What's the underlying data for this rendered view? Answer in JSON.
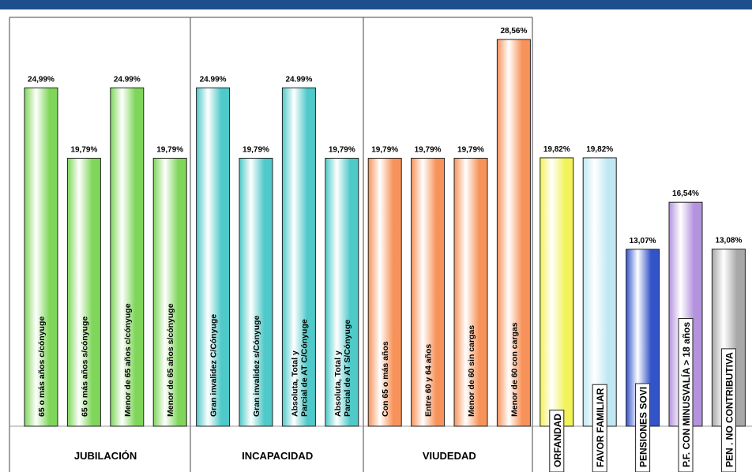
{
  "chart_data": {
    "type": "bar",
    "categories": [
      [
        "65 o más años c/cónyuge"
      ],
      [
        "65 o más años s/cónyuge"
      ],
      [
        "Menor de 65 años c/cónyuge"
      ],
      [
        "Menor de 65 años s/cónyuge"
      ],
      [
        "Gran invalidez C/Cónyuge"
      ],
      [
        "Gran invalidez s/Cónyuge"
      ],
      [
        "Absoluta, Total y",
        "Parcial de AT C/Cónyuge"
      ],
      [
        "Absoluta, Total y",
        "Parcial de AT S/Cónyuge"
      ],
      [
        "Con 65 o más años"
      ],
      [
        "Entre 60 y 64 años"
      ],
      [
        "Menor de 60 sin cargas"
      ],
      [
        "Menor de 60 con cargas"
      ],
      [
        "ORFANDAD"
      ],
      [
        "FAVOR FAMILIAR"
      ],
      [
        "PENSIONES SOVI"
      ],
      [
        "P.F. CON MINUSVALÍA > 18 años"
      ],
      [
        "PEN . NO CONTRIBUTIVA"
      ]
    ],
    "values": [
      24.99,
      19.79,
      24.99,
      19.79,
      24.99,
      19.79,
      24.99,
      19.79,
      19.79,
      19.79,
      19.79,
      28.56,
      19.82,
      19.82,
      13.07,
      16.54,
      13.08
    ],
    "value_labels": [
      "24,99%",
      "19,79%",
      "24.99%",
      "19,79%",
      "24.99%",
      "19,79%",
      "24.99%",
      "19,79%",
      "19,79%",
      "19,79%",
      "19,79%",
      "28,56%",
      "19,82%",
      "19,82%",
      "13,07%",
      "16,54%",
      "13,08%"
    ],
    "colors": [
      "#7fd65a",
      "#7fd65a",
      "#7fd65a",
      "#7fd65a",
      "#4fc9c9",
      "#4fc9c9",
      "#4fc9c9",
      "#4fc9c9",
      "#f7935a",
      "#f7935a",
      "#f7935a",
      "#f7935a",
      "#f2f25a",
      "#bfe8f2",
      "#3354c8",
      "#b393dd",
      "#a8a8a8"
    ],
    "groups": [
      {
        "label": "JUBILACIÓN",
        "size": 4
      },
      {
        "label": "INCAPACIDAD",
        "size": 4
      },
      {
        "label": "VIUDEDAD",
        "size": 4
      }
    ]
  }
}
